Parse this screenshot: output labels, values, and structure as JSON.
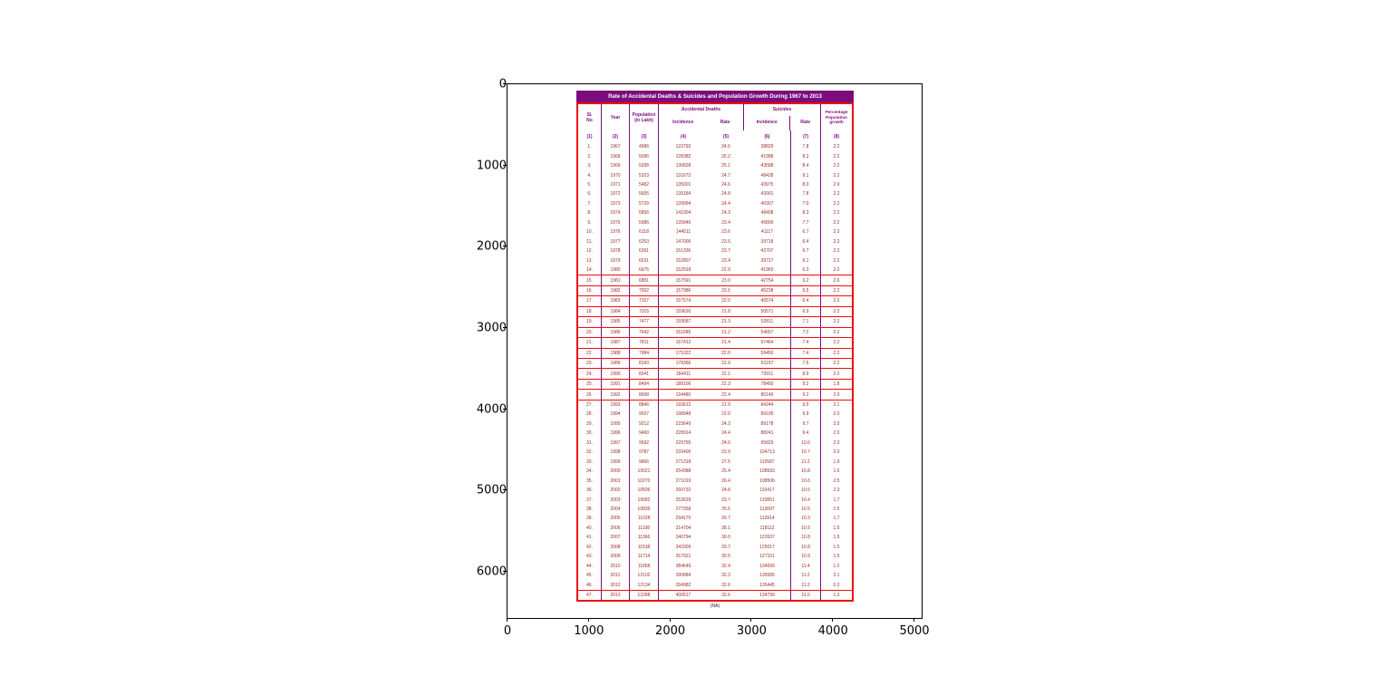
{
  "figure": {
    "x_tick_labels": [
      "0",
      "1000",
      "2000",
      "3000",
      "4000",
      "5000"
    ],
    "y_tick_labels": [
      "0",
      "1000",
      "2000",
      "3000",
      "4000",
      "5000",
      "6000"
    ]
  },
  "colors": {
    "title_bg": "#7B0C7B",
    "header_text": "#7B0C7B",
    "data_text": "#9C2A2A",
    "red": "#EE0E0E",
    "purple": "#7B0C7B",
    "axis": "#000000"
  },
  "table_header": {
    "sl_no_l1": "Sl.",
    "sl_no_l2": "No",
    "year": "Year",
    "pop_l1": "Population",
    "pop_l2": "(in Lakh)",
    "acc_group": "Accidental Deaths",
    "sui_group": "Suicides",
    "incidence": "Incidence",
    "rate": "Rate",
    "pct_l1": "Percentage",
    "pct_l2": "Population",
    "pct_l3": "growth"
  },
  "chart_data": {
    "type": "table",
    "title": "Rate of Accidental Deaths & Suicides and Population Growth During 1967 to 2013",
    "caption": "(NA)",
    "columns": [
      "Sl. No",
      "Year",
      "Population (in Lakh)",
      "Accidental Deaths Incidence",
      "Accidental Deaths Rate",
      "Suicides Incidence",
      "Suicides Rate",
      "Percentage Population growth"
    ],
    "col_numbers": [
      "(1)",
      "(2)",
      "(3)",
      "(4)",
      "(5)",
      "(6)",
      "(7)",
      "(8)"
    ],
    "rows": [
      [
        "1.",
        "1967",
        "4986",
        "122792",
        "24.6",
        "38829",
        "7.8",
        "2.2"
      ],
      [
        "2.",
        "1968",
        "5096",
        "128382",
        "25.2",
        "41988",
        "8.2",
        "2.2"
      ],
      [
        "3.",
        "1969",
        "5208",
        "130828",
        "25.1",
        "43588",
        "8.4",
        "2.2"
      ],
      [
        "4.",
        "1970",
        "5323",
        "131672",
        "24.7",
        "48428",
        "9.1",
        "2.2"
      ],
      [
        "5.",
        "1971",
        "5482",
        "135001",
        "24.6",
        "43975",
        "8.0",
        "2.9"
      ],
      [
        "6.",
        "1972",
        "5605",
        "139184",
        "24.8",
        "43901",
        "7.8",
        "2.2"
      ],
      [
        "7.",
        "1973",
        "5729",
        "139994",
        "24.4",
        "40307",
        "7.0",
        "2.2"
      ],
      [
        "8.",
        "1974",
        "5856",
        "142304",
        "24.3",
        "48408",
        "8.3",
        "2.2"
      ],
      [
        "9.",
        "1975",
        "5986",
        "139946",
        "23.4",
        "45800",
        "7.7",
        "2.2"
      ],
      [
        "10.",
        "1976",
        "6118",
        "144511",
        "23.6",
        "41117",
        "6.7",
        "2.2"
      ],
      [
        "11.",
        "1977",
        "6253",
        "147006",
        "23.5",
        "39718",
        "6.4",
        "2.2"
      ],
      [
        "12.",
        "1978",
        "6391",
        "151336",
        "23.7",
        "42707",
        "6.7",
        "2.2"
      ],
      [
        "13.",
        "1979",
        "6531",
        "152807",
        "23.4",
        "39717",
        "6.1",
        "2.2"
      ],
      [
        "14.",
        "1980",
        "6675",
        "152918",
        "22.9",
        "41960",
        "6.3",
        "2.2"
      ],
      [
        "15.",
        "1981",
        "6851",
        "157591",
        "23.0",
        "42754",
        "6.2",
        "2.6"
      ],
      [
        "16.",
        "1982",
        "7002",
        "157986",
        "22.6",
        "45238",
        "6.5",
        "2.2"
      ],
      [
        "17.",
        "1983",
        "7157",
        "157574",
        "22.0",
        "45574",
        "6.4",
        "2.2"
      ],
      [
        "18.",
        "1984",
        "7315",
        "159626",
        "21.8",
        "50571",
        "6.9",
        "2.2"
      ],
      [
        "19.",
        "1985",
        "7477",
        "159587",
        "21.3",
        "52811",
        "7.1",
        "2.2"
      ],
      [
        "20.",
        "1986",
        "7642",
        "161685",
        "21.2",
        "54657",
        "7.2",
        "2.2"
      ],
      [
        "21.",
        "1987",
        "7811",
        "167412",
        "21.4",
        "57464",
        "7.4",
        "2.2"
      ],
      [
        "22.",
        "1988",
        "7984",
        "175322",
        "22.0",
        "59450",
        "7.4",
        "2.2"
      ],
      [
        "23.",
        "1989",
        "8160",
        "178366",
        "21.9",
        "61157",
        "7.5",
        "2.2"
      ],
      [
        "24.",
        "1990",
        "8341",
        "184411",
        "22.1",
        "73911",
        "8.9",
        "2.2"
      ],
      [
        "25.",
        "1991",
        "8494",
        "189106",
        "22.3",
        "78450",
        "9.2",
        "1.8"
      ],
      [
        "26.",
        "1992",
        "8668",
        "194480",
        "22.4",
        "80149",
        "9.2",
        "2.0"
      ],
      [
        "27.",
        "1993",
        "8846",
        "193612",
        "21.9",
        "84244",
        "9.5",
        "2.1"
      ],
      [
        "28.",
        "1994",
        "9027",
        "198948",
        "22.0",
        "89195",
        "9.9",
        "2.0"
      ],
      [
        "29.",
        "1995",
        "9212",
        "223649",
        "24.3",
        "89178",
        "9.7",
        "2.0"
      ],
      [
        "30.",
        "1996",
        "9400",
        "228914",
        "24.4",
        "88241",
        "9.4",
        "2.0"
      ],
      [
        "31.",
        "1997",
        "9592",
        "229755",
        "24.0",
        "95829",
        "10.0",
        "2.0"
      ],
      [
        "32.",
        "1998",
        "9787",
        "233406",
        "23.9",
        "104713",
        "10.7",
        "2.0"
      ],
      [
        "33.",
        "1999",
        "9866",
        "271318",
        "27.5",
        "110587",
        "11.2",
        "1.9"
      ],
      [
        "34.",
        "2000",
        "10021",
        "254388",
        "25.4",
        "108593",
        "10.8",
        "1.6"
      ],
      [
        "35.",
        "2001",
        "10270",
        "271019",
        "26.4",
        "108506",
        "10.6",
        "2.5"
      ],
      [
        "36.",
        "2002",
        "10506",
        "260732",
        "24.8",
        "110417",
        "10.5",
        "2.3"
      ],
      [
        "37.",
        "2003",
        "10682",
        "253629",
        "23.7",
        "110851",
        "10.4",
        "1.7"
      ],
      [
        "38.",
        "2004",
        "10839",
        "277258",
        "25.6",
        "113697",
        "10.5",
        "1.5"
      ],
      [
        "39.",
        "2005",
        "11028",
        "294175",
        "26.7",
        "113914",
        "10.3",
        "1.7"
      ],
      [
        "40.",
        "2006",
        "11198",
        "314704",
        "28.1",
        "118112",
        "10.5",
        "1.5"
      ],
      [
        "41.",
        "2007",
        "11366",
        "340794",
        "30.0",
        "122637",
        "10.8",
        "1.5"
      ],
      [
        "42.",
        "2008",
        "11538",
        "342309",
        "29.7",
        "125017",
        "10.8",
        "1.5"
      ],
      [
        "43.",
        "2009",
        "11714",
        "357021",
        "30.5",
        "127151",
        "10.9",
        "1.5"
      ],
      [
        "44.",
        "2010",
        "11858",
        "384649",
        "32.4",
        "134599",
        "11.4",
        "1.2"
      ],
      [
        "45.",
        "2011",
        "12102",
        "390884",
        "32.3",
        "135585",
        "11.2",
        "2.1"
      ],
      [
        "46.",
        "2012",
        "12134",
        "394982",
        "32.6",
        "135445",
        "11.2",
        "0.3"
      ],
      [
        "47.",
        "2013",
        "12288",
        "400517",
        "32.6",
        "134799",
        "11.0",
        "1.3"
      ]
    ],
    "red_separator_after_rows": [
      14,
      15,
      16,
      17,
      18,
      19,
      20,
      21,
      22,
      23,
      24,
      25,
      26,
      46
    ]
  }
}
